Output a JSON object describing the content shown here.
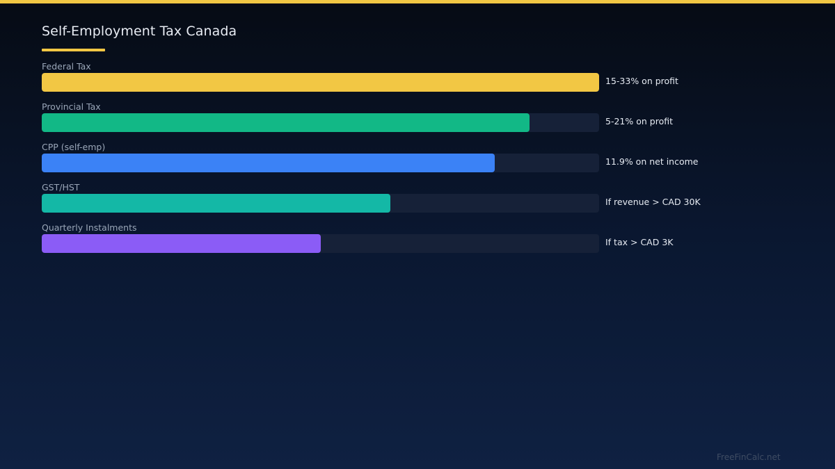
{
  "chart_data": {
    "type": "bar",
    "orientation": "horizontal",
    "title": "Self-Employment Tax Canada",
    "categories": [
      "Federal Tax",
      "Provincial Tax",
      "CPP (self-emp)",
      "GST/HST",
      "Quarterly Instalments"
    ],
    "values": [
      1.0,
      0.875,
      0.8125,
      0.625,
      0.5
    ],
    "annotations": [
      "15-33% on profit",
      "5-21% on profit",
      "11.9% on net income",
      "If revenue > CAD 30K",
      "If tax > CAD 3K"
    ],
    "colors": [
      "#f2c744",
      "#12b886",
      "#3b82f6",
      "#14b8a6",
      "#8b5cf6"
    ],
    "track_color": "#162138",
    "xlim": [
      0,
      1
    ],
    "grid": false,
    "legend": "none"
  },
  "footer": {
    "watermark": "FreeFinCalc.net"
  },
  "theme": {
    "accent": "#f2c744"
  }
}
